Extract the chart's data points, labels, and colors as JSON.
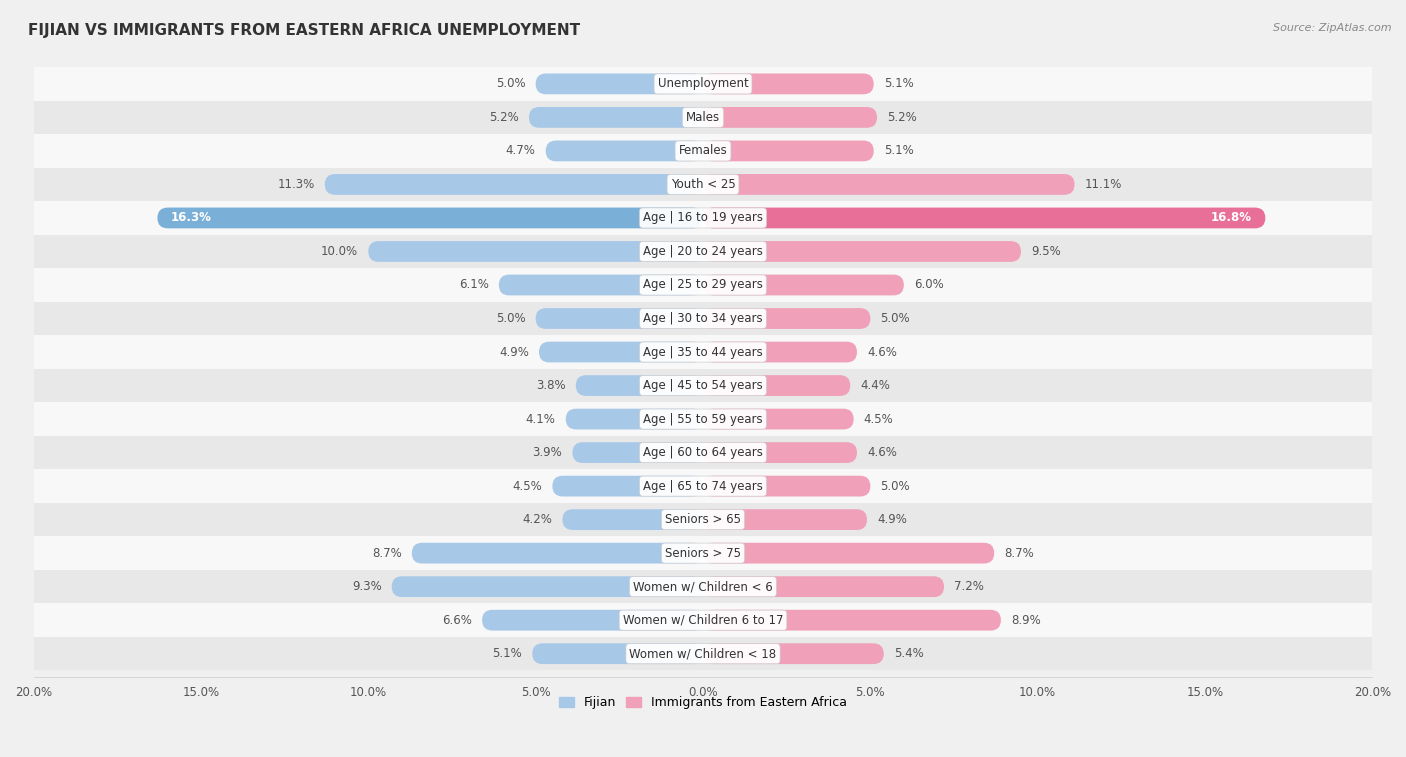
{
  "title": "FIJIAN VS IMMIGRANTS FROM EASTERN AFRICA UNEMPLOYMENT",
  "source": "Source: ZipAtlas.com",
  "categories": [
    "Unemployment",
    "Males",
    "Females",
    "Youth < 25",
    "Age | 16 to 19 years",
    "Age | 20 to 24 years",
    "Age | 25 to 29 years",
    "Age | 30 to 34 years",
    "Age | 35 to 44 years",
    "Age | 45 to 54 years",
    "Age | 55 to 59 years",
    "Age | 60 to 64 years",
    "Age | 65 to 74 years",
    "Seniors > 65",
    "Seniors > 75",
    "Women w/ Children < 6",
    "Women w/ Children 6 to 17",
    "Women w/ Children < 18"
  ],
  "fijian": [
    5.0,
    5.2,
    4.7,
    11.3,
    16.3,
    10.0,
    6.1,
    5.0,
    4.9,
    3.8,
    4.1,
    3.9,
    4.5,
    4.2,
    8.7,
    9.3,
    6.6,
    5.1
  ],
  "immigrants": [
    5.1,
    5.2,
    5.1,
    11.1,
    16.8,
    9.5,
    6.0,
    5.0,
    4.6,
    4.4,
    4.5,
    4.6,
    5.0,
    4.9,
    8.7,
    7.2,
    8.9,
    5.4
  ],
  "fijian_color": "#a8c8e8",
  "immigrant_color": "#f0a0b8",
  "fijian_highlight_color": "#7ab0d8",
  "immigrant_highlight_color": "#e87098",
  "highlight_row": 4,
  "xlim": 20.0,
  "bar_height": 0.62,
  "bg_color": "#f0f0f0",
  "row_light_color": "#f8f8f8",
  "row_dark_color": "#e8e8e8",
  "separator_color": "#cccccc",
  "legend_fijian": "Fijian",
  "legend_immigrant": "Immigrants from Eastern Africa"
}
